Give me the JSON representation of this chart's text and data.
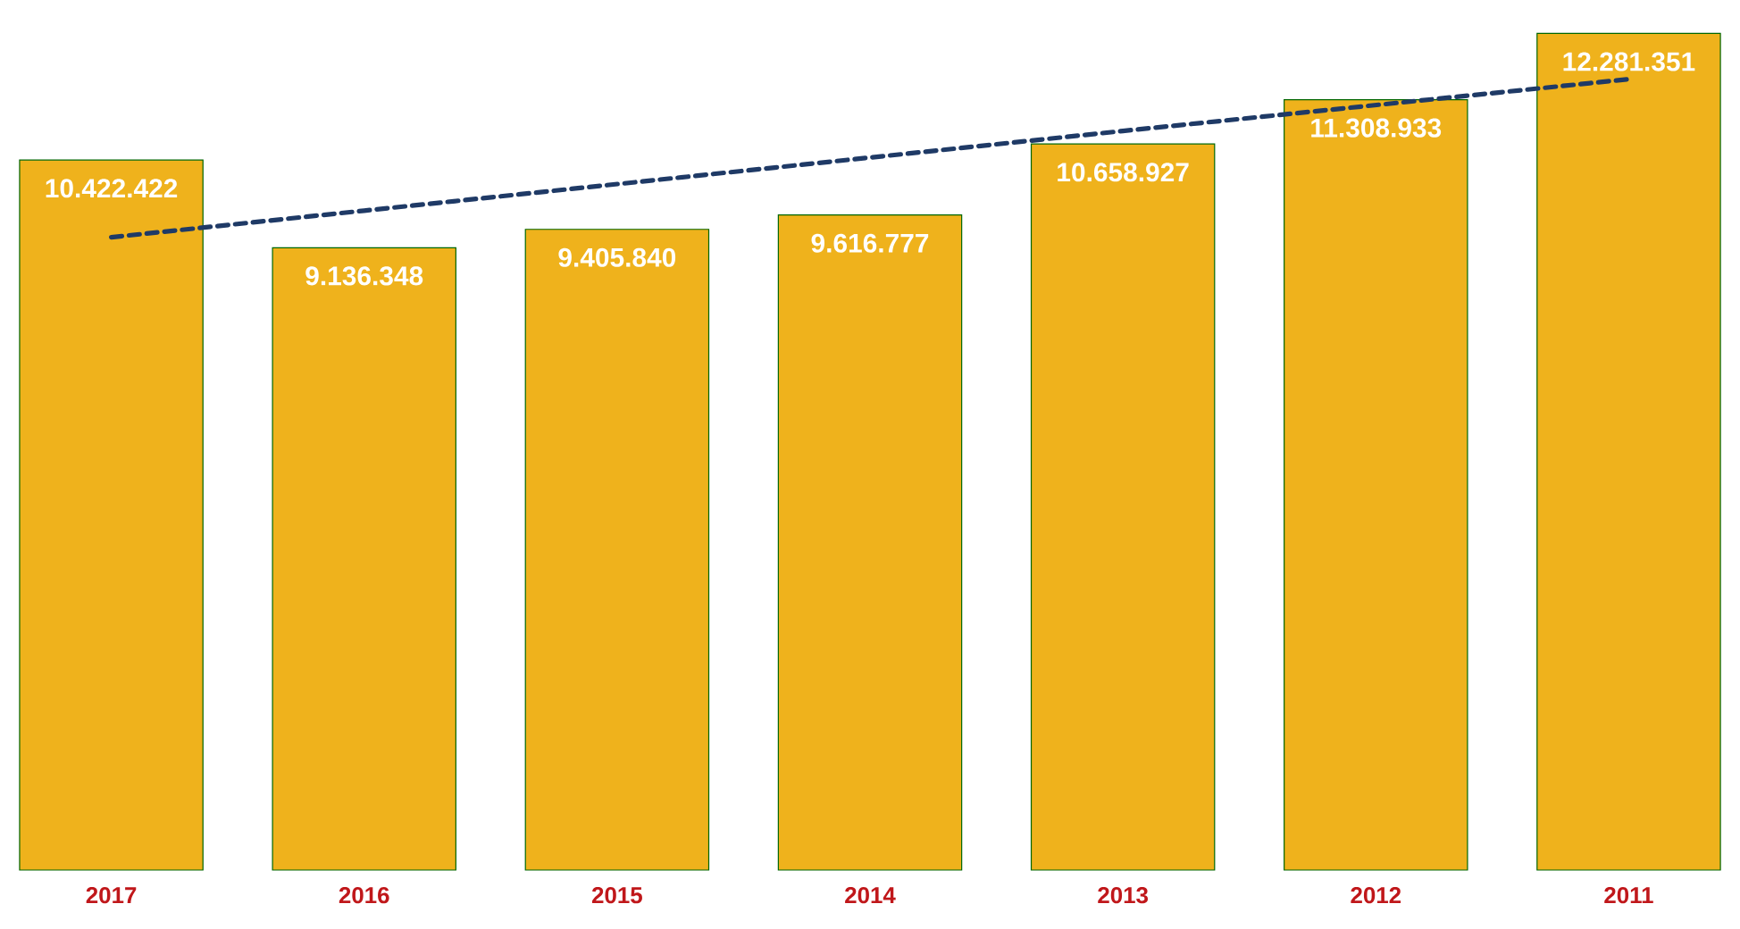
{
  "chart_data": {
    "type": "bar",
    "categories": [
      "2017",
      "2016",
      "2015",
      "2014",
      "2013",
      "2012",
      "2011"
    ],
    "tick_labels": "x",
    "series": [
      {
        "color": "#efb21c",
        "values": [
          10422422,
          9136348,
          9405840,
          9616777,
          10658927,
          11308933,
          12281351
        ],
        "value_labels": [
          "10.422.422",
          "9.136.348",
          "9.405.840",
          "9.616.777",
          "10.658.927",
          "11.308.933",
          "12.281.351"
        ]
      },
      {
        "type": "line",
        "color": "#1f3a66",
        "line_style": "dashed",
        "values": [
          9290000,
          9680000,
          10070000,
          10460000,
          10850000,
          11230000,
          11610000
        ]
      }
    ]
  }
}
